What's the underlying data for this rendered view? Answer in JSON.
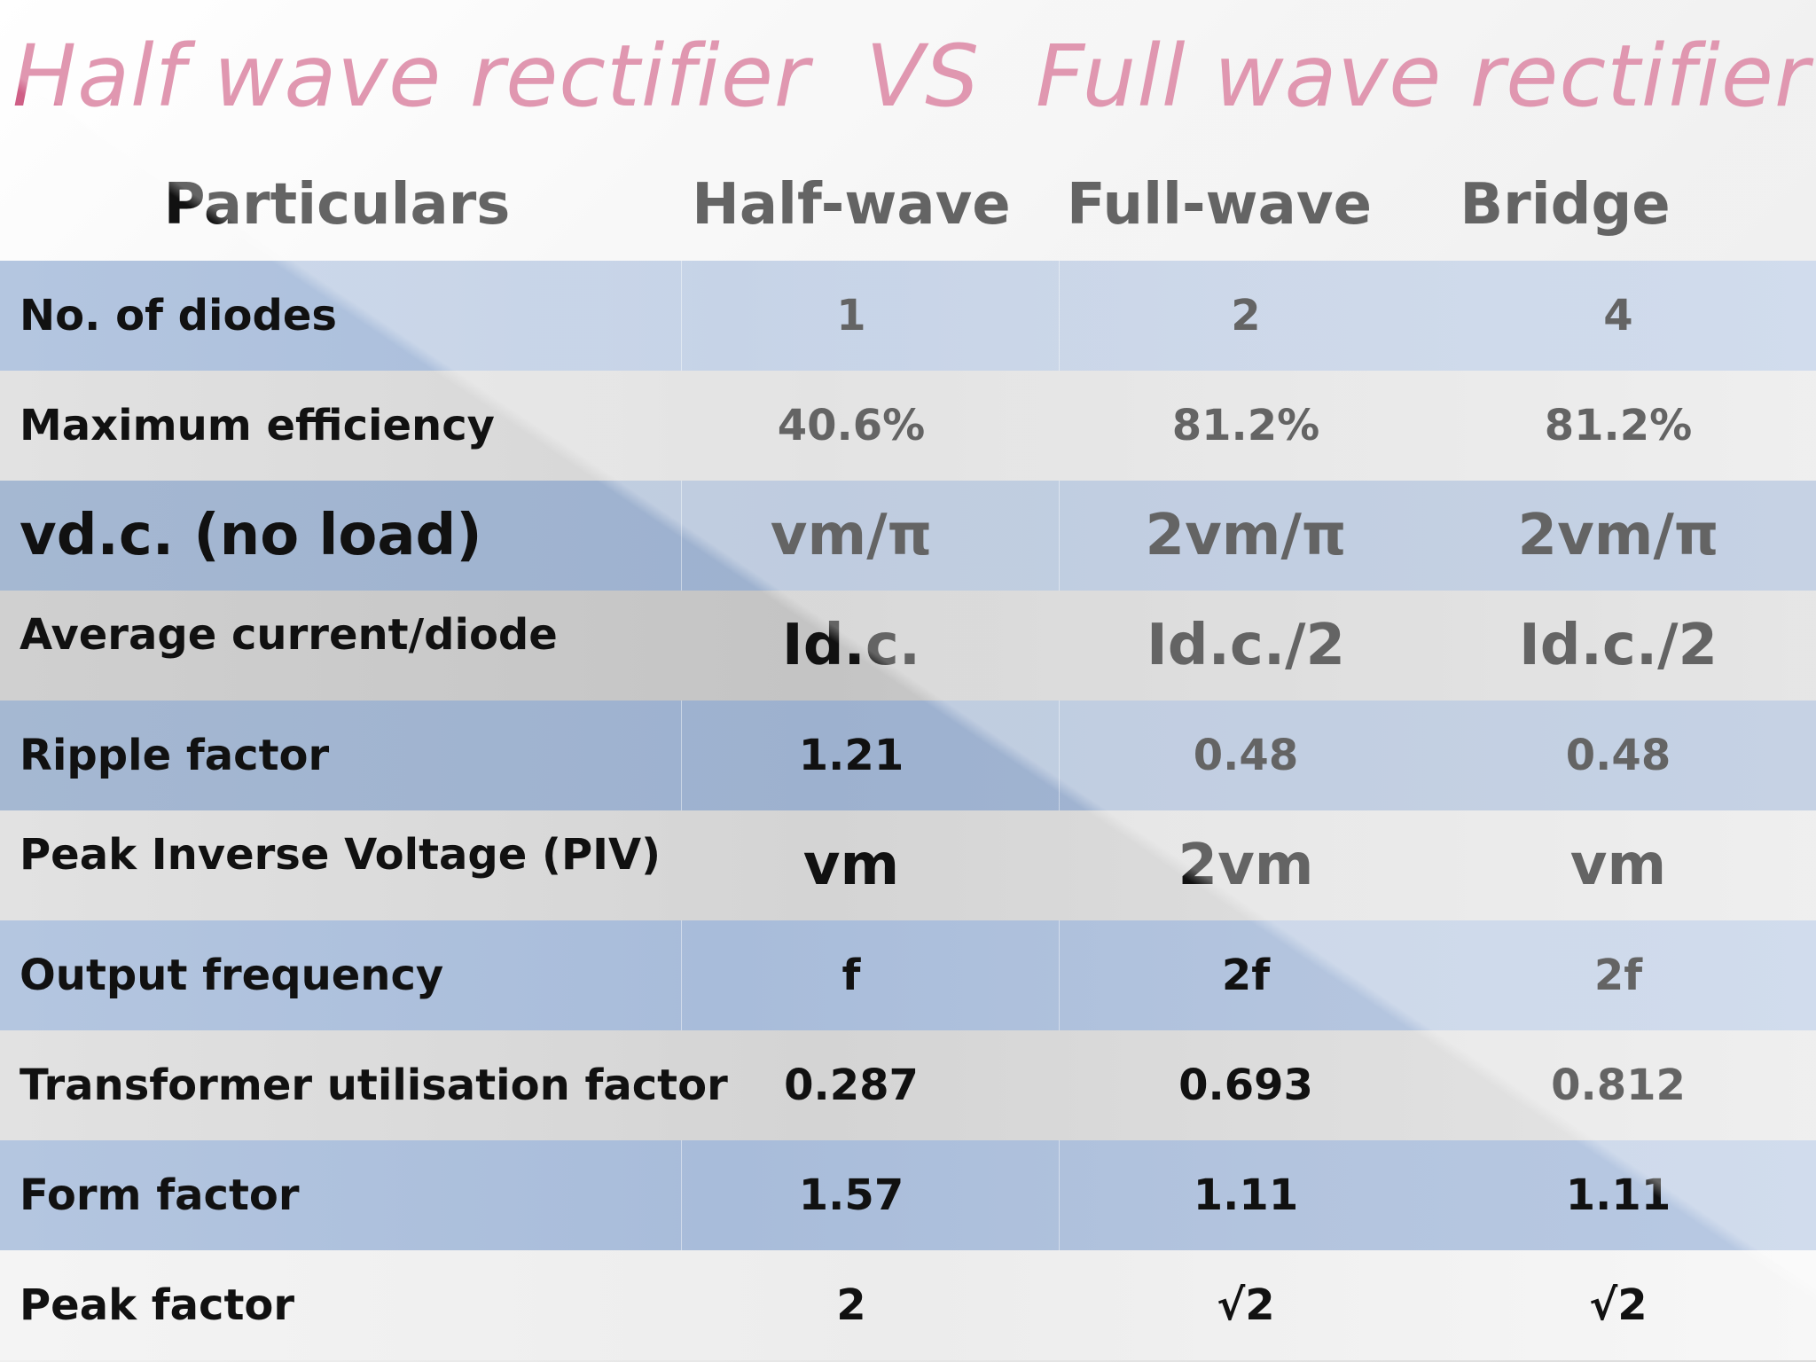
{
  "title": "Half wave rectifier  VS  Full wave rectifier",
  "headers": [
    "Particulars",
    "Half-wave",
    "Full-wave",
    "Bridge"
  ],
  "rows": [
    {
      "label": "No. of diodes",
      "half": "1",
      "full": "2",
      "bridge": "4"
    },
    {
      "label": "Maximum efficiency",
      "half": "40.6%",
      "full": "81.2%",
      "bridge": "81.2%"
    },
    {
      "label": "vd.c. (no load)",
      "half": "vm/π",
      "full": "2vm/π",
      "bridge": "2vm/π"
    },
    {
      "label": "Average current/diode",
      "half": "Id.c.",
      "full": "Id.c./2",
      "bridge": "Id.c./2"
    },
    {
      "label": "Ripple factor",
      "half": "1.21",
      "full": "0.48",
      "bridge": "0.48"
    },
    {
      "label": "Peak Inverse Voltage (PIV)",
      "half": "vm",
      "full": "2vm",
      "bridge": "vm"
    },
    {
      "label": "Output frequency",
      "half": "f",
      "full": "2f",
      "bridge": "2f"
    },
    {
      "label": "Transformer  utilisation factor",
      "half": "0.287",
      "full": "0.693",
      "bridge": "0.812"
    },
    {
      "label": "Form factor",
      "half": "1.57",
      "full": "1.11",
      "bridge": "1.11"
    },
    {
      "label": "Peak factor",
      "half": "2",
      "full": "√2",
      "bridge": "√2"
    }
  ]
}
